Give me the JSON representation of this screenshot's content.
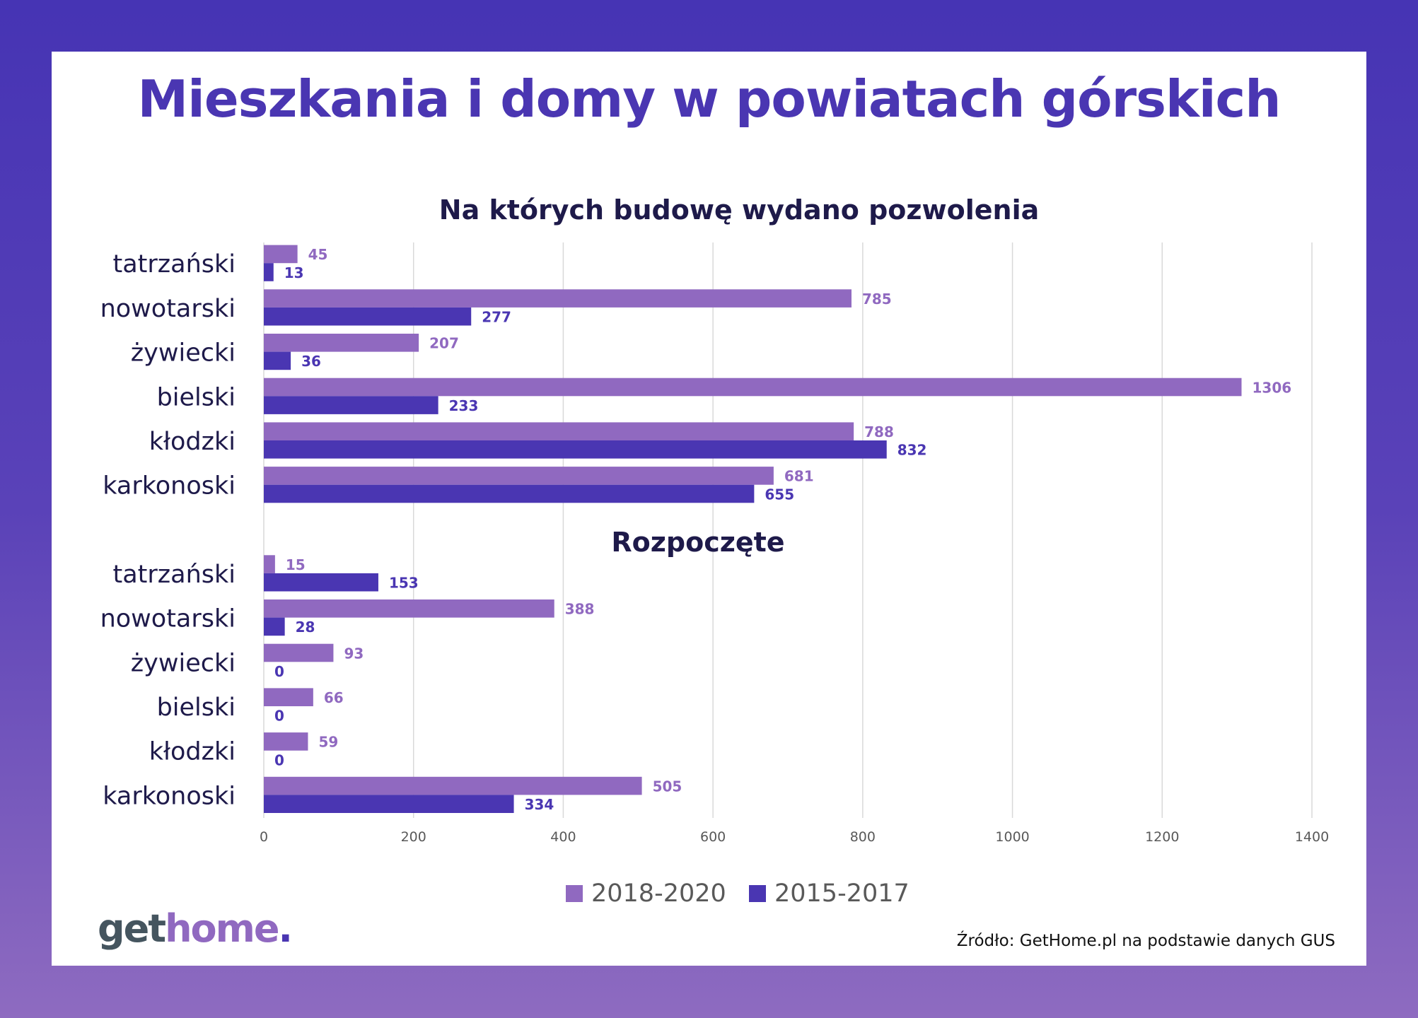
{
  "title": "Mieszkania i domy w powiatach górskich",
  "source": "Źródło: GetHome.pl na podstawie danych GUS",
  "logo": {
    "part1": "get",
    "part2": "home",
    "part3": "."
  },
  "colors": {
    "series_2018_2020": "#9069c0",
    "series_2015_2017": "#4a36b2",
    "title": "#4a36b2",
    "subtitle": "#1e1a4a"
  },
  "chart_data": {
    "type": "bar",
    "orientation": "horizontal",
    "xlim": [
      0,
      1400
    ],
    "xticks": [
      "0",
      "200",
      "400",
      "600",
      "800",
      "1000",
      "1200",
      "1400"
    ],
    "grid": true,
    "legend_placement": "bottom",
    "legend": [
      "2018-2020",
      "2015-2017"
    ],
    "panels": [
      {
        "title": "Na których budowę wydano pozwolenia",
        "categories": [
          "tatrzański",
          "nowotarski",
          "żywiecki",
          "bielski",
          "kłodzki",
          "karkonoski"
        ],
        "series": [
          {
            "name": "2018-2020",
            "values": [
              45,
              785,
              207,
              1306,
              788,
              681
            ]
          },
          {
            "name": "2015-2017",
            "values": [
              13,
              277,
              36,
              233,
              832,
              655
            ]
          }
        ]
      },
      {
        "title": "Rozpoczęte",
        "categories": [
          "tatrzański",
          "nowotarski",
          "żywiecki",
          "bielski",
          "kłodzki",
          "karkonoski"
        ],
        "series": [
          {
            "name": "2018-2020",
            "values": [
              15,
              388,
              93,
              66,
              59,
              505
            ]
          },
          {
            "name": "2015-2017",
            "values": [
              153,
              28,
              0,
              0,
              0,
              334
            ]
          }
        ]
      }
    ]
  }
}
